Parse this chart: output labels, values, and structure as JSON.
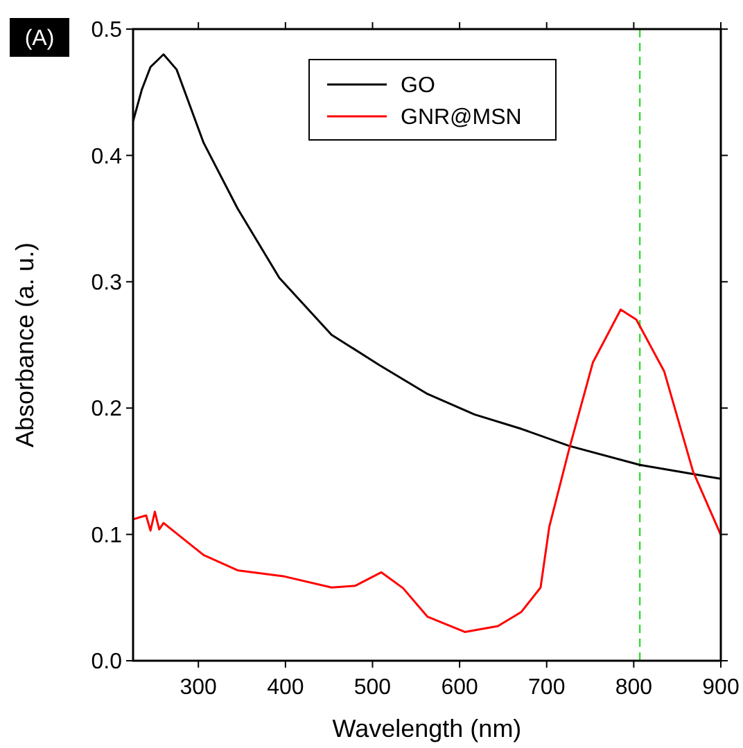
{
  "chart_data": {
    "type": "line",
    "xlabel": "Wavelength (nm)",
    "ylabel": "Absorbance (a. u.)",
    "annotations": [
      "(A)"
    ],
    "xlim": [
      225,
      900
    ],
    "xticks": [
      300,
      400,
      500,
      600,
      700,
      800,
      900
    ],
    "ylim": [
      0,
      0.5
    ],
    "yticks": [
      {
        "value": 0,
        "label": "0.0"
      },
      0.1,
      0.2,
      0.3,
      0.4,
      0.5
    ],
    "legend": "top",
    "grid": false,
    "line_style": "solid",
    "marker": "none",
    "ref_lines": [
      {
        "axis": "x",
        "value": 807,
        "color": "#33dd33",
        "line_style": "dashed"
      }
    ],
    "series": [
      {
        "name": "GO",
        "color": "#000000",
        "x": [
          225,
          235,
          245,
          260,
          275,
          306,
          345,
          393,
          453,
          508,
          562,
          617,
          671,
          726,
          807,
          850,
          900
        ],
        "values": [
          0.427,
          0.452,
          0.47,
          0.48,
          0.468,
          0.41,
          0.358,
          0.303,
          0.258,
          0.234,
          0.2116,
          0.195,
          0.1835,
          0.17,
          0.155,
          0.15,
          0.144
        ]
      },
      {
        "name": "GNR@MSN",
        "color": "#ff0000",
        "x": [
          225,
          235,
          240,
          245,
          250,
          255,
          260,
          306,
          345,
          399,
          453,
          480,
          510,
          535,
          563,
          606,
          644,
          671,
          693,
          703,
          726,
          753,
          785,
          803,
          835,
          868,
          900
        ],
        "values": [
          0.112,
          0.114,
          0.115,
          0.103,
          0.118,
          0.104,
          0.109,
          0.0837,
          0.0716,
          0.0667,
          0.058,
          0.0593,
          0.07,
          0.0575,
          0.0349,
          0.0228,
          0.0274,
          0.0387,
          0.058,
          0.106,
          0.168,
          0.236,
          0.278,
          0.27,
          0.229,
          0.15,
          0.0996
        ]
      }
    ]
  }
}
